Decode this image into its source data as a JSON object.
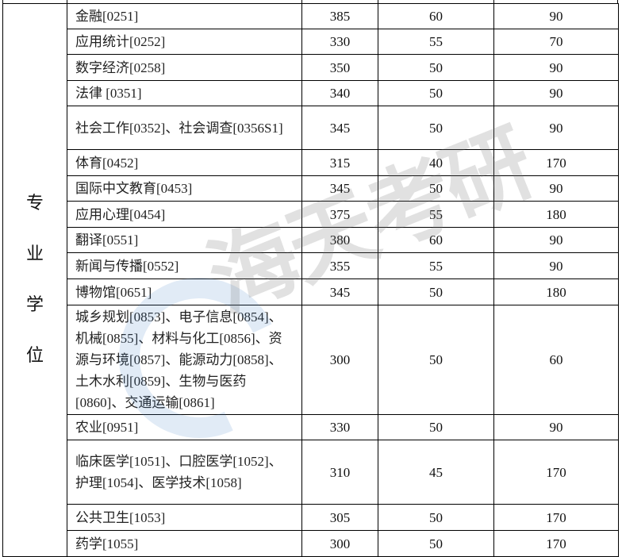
{
  "category": "专业学位",
  "watermark": "海天考研",
  "rows": [
    {
      "name": "金融[0251]",
      "total": "385",
      "single1": "60",
      "single2": "90"
    },
    {
      "name": "应用统计[0252]",
      "total": "330",
      "single1": "55",
      "single2": "70"
    },
    {
      "name": "数字经济[0258]",
      "total": "350",
      "single1": "50",
      "single2": "90"
    },
    {
      "name": "法律 [0351]",
      "total": "340",
      "single1": "50",
      "single2": "90"
    },
    {
      "name": "社会工作[0352]、社会调查[0356S1]",
      "total": "345",
      "single1": "50",
      "single2": "90"
    },
    {
      "name": "体育[0452]",
      "total": "315",
      "single1": "40",
      "single2": "170"
    },
    {
      "name": "国际中文教育[0453]",
      "total": "345",
      "single1": "50",
      "single2": "90"
    },
    {
      "name": "应用心理[0454]",
      "total": "375",
      "single1": "55",
      "single2": "180"
    },
    {
      "name": "翻译[0551]",
      "total": "380",
      "single1": "60",
      "single2": "90"
    },
    {
      "name": "新闻与传播[0552]",
      "total": "355",
      "single1": "55",
      "single2": "90"
    },
    {
      "name": "博物馆[0651]",
      "total": "345",
      "single1": "50",
      "single2": "180"
    },
    {
      "name": "城乡规划[0853]、电子信息[0854]、机械[0855]、材料与化工[0856]、资源与环境[0857]、能源动力[0858]、土木水利[0859]、生物与医药[0860]、交通运输[0861]",
      "total": "300",
      "single1": "50",
      "single2": "60"
    },
    {
      "name": "农业[0951]",
      "total": "330",
      "single1": "50",
      "single2": "90"
    },
    {
      "name": "临床医学[1051]、口腔医学[1052]、护理[1054]、医学技术[1058]",
      "total": "310",
      "single1": "45",
      "single2": "170"
    },
    {
      "name": "公共卫生[1053]",
      "total": "305",
      "single1": "50",
      "single2": "170"
    },
    {
      "name": "药学[1055]",
      "total": "300",
      "single1": "50",
      "single2": "170"
    }
  ]
}
